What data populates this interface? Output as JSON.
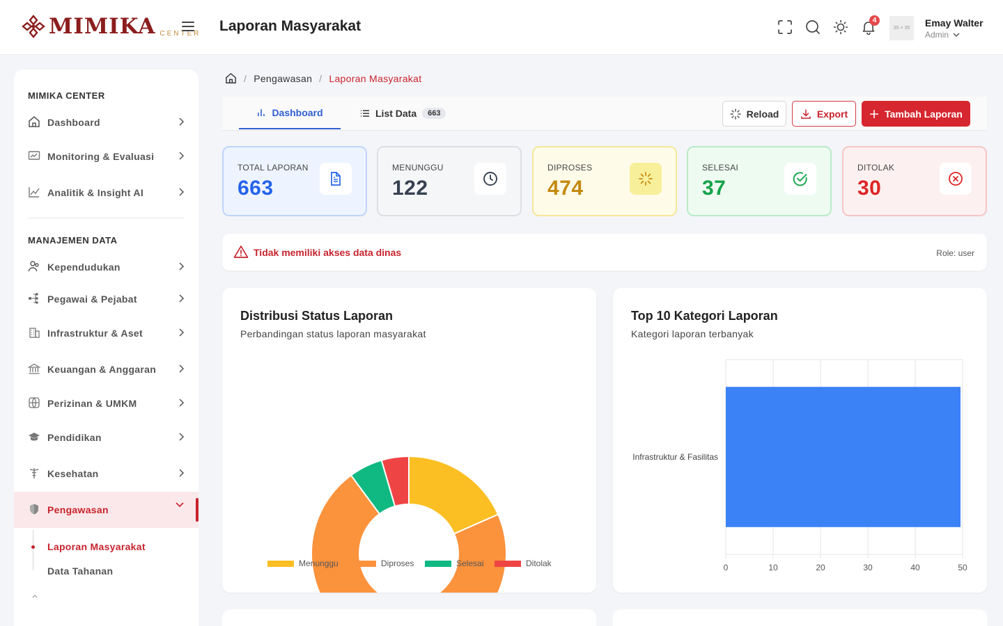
{
  "brand": {
    "name": "MIMIKA",
    "sub": "CENTER"
  },
  "header": {
    "title": "Laporan Masyarakat",
    "notifications": "4",
    "avatar_placeholder": "35 × 35",
    "user_name": "Emay Walter",
    "user_role": "Admin"
  },
  "sidebar": {
    "section1": "MIMIKA CENTER",
    "items1": [
      {
        "label": "Dashboard",
        "icon": "home-icon"
      },
      {
        "label": "Monitoring & Evaluasi",
        "icon": "monitor-icon"
      },
      {
        "label": "Analitik & Insight AI",
        "icon": "analytics-icon"
      }
    ],
    "section2": "MANAJEMEN DATA",
    "items2": [
      {
        "label": "Kependudukan",
        "icon": "users-icon"
      },
      {
        "label": "Pegawai & Pejabat",
        "icon": "org-icon"
      },
      {
        "label": "Infrastruktur & Aset",
        "icon": "building-icon"
      },
      {
        "label": "Keuangan & Anggaran",
        "icon": "bank-icon"
      },
      {
        "label": "Perizinan & UMKM",
        "icon": "globe-icon"
      },
      {
        "label": "Pendidikan",
        "icon": "graduation-icon"
      },
      {
        "label": "Kesehatan",
        "icon": "health-icon"
      },
      {
        "label": "Pengawasan",
        "icon": "shield-icon"
      }
    ],
    "subitems": [
      "Laporan Masyarakat",
      "Data Tahanan"
    ],
    "accent": "#c8232d"
  },
  "breadcrumb": {
    "parent": "Pengawasan",
    "current": "Laporan Masyarakat"
  },
  "tabs": {
    "dashboard": "Dashboard",
    "list": "List Data",
    "list_count": "663"
  },
  "actions": {
    "reload": "Reload",
    "export": "Export",
    "add": "Tambah Laporan"
  },
  "stats": [
    {
      "label": "TOTAL LAPORAN",
      "value": "663",
      "color": "#2563eb",
      "bg": "#eef4ff",
      "border": "#bfd4fb",
      "icon": "document-icon"
    },
    {
      "label": "MENUNGGU",
      "value": "122",
      "color": "#374151",
      "bg": "#f5f6f8",
      "border": "#dcdfe4",
      "icon": "clock-icon"
    },
    {
      "label": "DIPROSES",
      "value": "474",
      "color": "#c48a10",
      "bg": "#fefbe8",
      "border": "#f6e79a",
      "icon": "loader-icon"
    },
    {
      "label": "SELESAI",
      "value": "37",
      "color": "#16a34a",
      "bg": "#eefbf1",
      "border": "#b9ebc8",
      "icon": "check-circle-icon"
    },
    {
      "label": "DITOLAK",
      "value": "30",
      "color": "#dc2626",
      "bg": "#fdf0f0",
      "border": "#f6c6c6",
      "icon": "x-circle-icon"
    }
  ],
  "alert": {
    "text": "Tidak memiliki akses data dinas",
    "role": "Role: user"
  },
  "donut": {
    "title": "Distribusi Status Laporan",
    "subtitle": "Perbandingan status laporan masyarakat",
    "chart_data": {
      "type": "pie",
      "categories": [
        "Menunggu",
        "Diproses",
        "Selesai",
        "Ditolak"
      ],
      "values": [
        122,
        474,
        37,
        30
      ],
      "colors": [
        "#fbbf24",
        "#fb923c",
        "#10b981",
        "#ef4444"
      ]
    }
  },
  "bar": {
    "title": "Top 10 Kategori Laporan",
    "subtitle": "Kategori laporan terbanyak",
    "chart_data": {
      "type": "bar",
      "orientation": "horizontal",
      "categories": [
        "Infrastruktur & Fasilitas"
      ],
      "values": [
        50
      ],
      "xlim": [
        0,
        50
      ],
      "xticks": [
        "0",
        "10",
        "20",
        "30",
        "40",
        "50"
      ],
      "color": "#3b82f6",
      "grid": true
    }
  }
}
